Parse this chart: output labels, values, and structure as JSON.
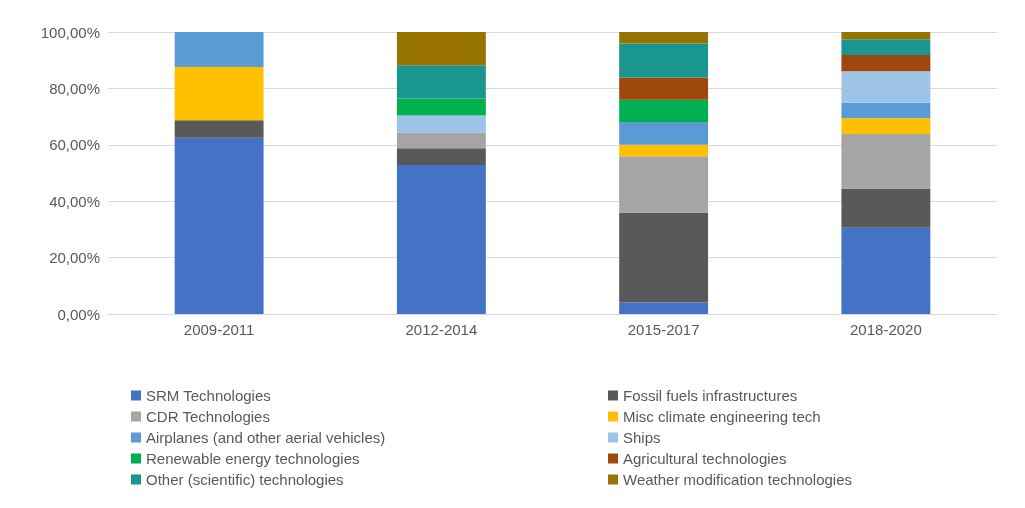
{
  "chart_data": {
    "type": "bar",
    "stacked": true,
    "categories": [
      "2009-2011",
      "2012-2014",
      "2015-2017",
      "2018-2020"
    ],
    "series": [
      {
        "name": "SRM Technologies",
        "color": "#4472c4",
        "values": [
          62.5,
          52.8,
          4.1,
          30.6
        ]
      },
      {
        "name": "Fossil fuels infrastructures",
        "color": "#595959",
        "values": [
          6.2,
          6.0,
          31.8,
          13.9
        ]
      },
      {
        "name": "CDR Technologies",
        "color": "#a5a5a5",
        "values": [
          0,
          5.6,
          20.0,
          19.3
        ]
      },
      {
        "name": "Misc climate engineering tech",
        "color": "#ffc000",
        "values": [
          18.9,
          0,
          4.1,
          5.6
        ]
      },
      {
        "name": "Airplanes (and other aerial vehicles)",
        "color": "#5b9bd5",
        "values": [
          12.4,
          0,
          8.1,
          5.5
        ]
      },
      {
        "name": "Ships",
        "color": "#9dc3e6",
        "values": [
          0,
          6.0,
          0,
          11.2
        ]
      },
      {
        "name": "Renewable energy technologies",
        "color": "#00b050",
        "values": [
          0,
          6.0,
          7.9,
          0
        ]
      },
      {
        "name": "Agricultural technologies",
        "color": "#9e480e",
        "values": [
          0,
          0,
          7.9,
          5.7
        ]
      },
      {
        "name": "Other (scientific) technologies",
        "color": "#1a9690",
        "values": [
          0,
          11.8,
          12.0,
          5.6
        ]
      },
      {
        "name": "Weather modification technologies",
        "color": "#997300",
        "values": [
          0,
          11.8,
          4.1,
          2.6
        ]
      }
    ],
    "ylim": [
      0,
      100
    ],
    "yticks": [
      {
        "value": 0,
        "label": "0,00%"
      },
      {
        "value": 20,
        "label": "20,00%"
      },
      {
        "value": 40,
        "label": "40,00%"
      },
      {
        "value": 60,
        "label": "60,00%"
      },
      {
        "value": 80,
        "label": "80,00%"
      },
      {
        "value": 100,
        "label": "100,00%"
      }
    ],
    "grid": "y",
    "legend": "bottom"
  }
}
